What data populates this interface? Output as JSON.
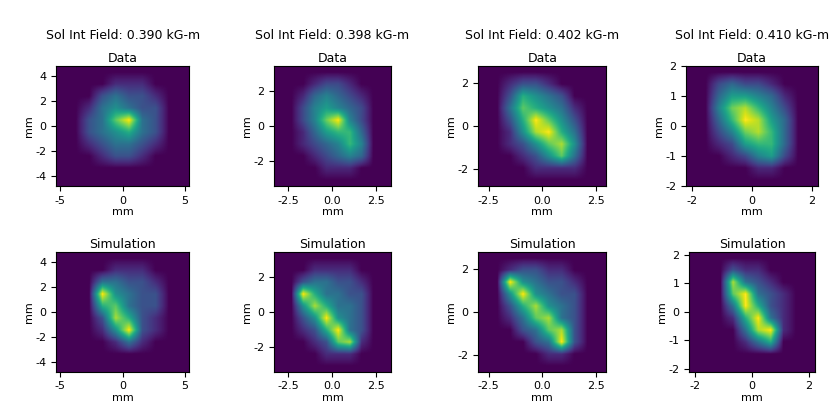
{
  "chart_data": [
    {
      "type": "heatmap",
      "subtitle": "Sol Int Field: 0.390 kG-m",
      "title": "Data",
      "xlabel": "mm",
      "ylabel": "mm",
      "color": "viridis",
      "xlim": [
        -5.3,
        5.3
      ],
      "ylim": [
        -4.8,
        4.8
      ],
      "xticks": [
        -5,
        0,
        5
      ],
      "yticks": [
        -4,
        -2,
        0,
        2,
        4
      ],
      "cells": [
        [
          0,
          0,
          0,
          0,
          0,
          0,
          0,
          0,
          0,
          0
        ],
        [
          0,
          0,
          0,
          0,
          1,
          1,
          1,
          0,
          0,
          0
        ],
        [
          0,
          0,
          0,
          2,
          3,
          2,
          2,
          1,
          0,
          0
        ],
        [
          0,
          0,
          1,
          3,
          4,
          3,
          2,
          2,
          0,
          0
        ],
        [
          0,
          0,
          2,
          3,
          6,
          8,
          3,
          2,
          0,
          0
        ],
        [
          0,
          0,
          2,
          3,
          4,
          5,
          3,
          2,
          0,
          0
        ],
        [
          0,
          0,
          1,
          2,
          3,
          3,
          2,
          1,
          0,
          0
        ],
        [
          0,
          0,
          0,
          1,
          2,
          2,
          1,
          0,
          0,
          0
        ],
        [
          0,
          0,
          0,
          0,
          0,
          0,
          0,
          0,
          0,
          0
        ],
        [
          0,
          0,
          0,
          0,
          0,
          0,
          0,
          0,
          0,
          0
        ]
      ]
    },
    {
      "type": "heatmap",
      "subtitle": "Sol Int Field: 0.398 kG-m",
      "title": "Data",
      "xlabel": "mm",
      "ylabel": "mm",
      "color": "viridis",
      "xlim": [
        -3.3,
        3.3
      ],
      "ylim": [
        -3.4,
        3.4
      ],
      "xticks": [
        -2.5,
        {
          "value": 0,
          "label": "0.0"
        },
        2.5
      ],
      "yticks": [
        -2,
        0,
        2
      ],
      "cells": [
        [
          0,
          0,
          0,
          0,
          0,
          0,
          0,
          0,
          0,
          0
        ],
        [
          0,
          0,
          0,
          1,
          2,
          2,
          1,
          0,
          0,
          0
        ],
        [
          0,
          0,
          1,
          3,
          4,
          3,
          2,
          1,
          0,
          0
        ],
        [
          0,
          0,
          2,
          4,
          5,
          4,
          3,
          2,
          0,
          0
        ],
        [
          0,
          0,
          2,
          4,
          7,
          9,
          4,
          2,
          0,
          0
        ],
        [
          0,
          0,
          1,
          3,
          5,
          6,
          6,
          3,
          0,
          0
        ],
        [
          0,
          0,
          1,
          2,
          3,
          4,
          6,
          4,
          0,
          0
        ],
        [
          0,
          0,
          0,
          1,
          2,
          3,
          4,
          3,
          0,
          0
        ],
        [
          0,
          0,
          0,
          0,
          1,
          1,
          1,
          0,
          0,
          0
        ],
        [
          0,
          0,
          0,
          0,
          0,
          0,
          0,
          0,
          0,
          0
        ]
      ]
    },
    {
      "type": "heatmap",
      "subtitle": "Sol Int Field: 0.402 kG-m",
      "title": "Data",
      "xlabel": "mm",
      "ylabel": "mm",
      "color": "viridis",
      "xlim": [
        -3,
        3
      ],
      "ylim": [
        -2.8,
        2.8
      ],
      "xticks": [
        -2.5,
        {
          "value": 0,
          "label": "0.0"
        },
        2.5
      ],
      "yticks": [
        -2,
        0,
        2
      ],
      "cells": [
        [
          0,
          0,
          0,
          0,
          0,
          0,
          0,
          0,
          0,
          0
        ],
        [
          0,
          0,
          1,
          2,
          2,
          1,
          0,
          0,
          0,
          0
        ],
        [
          0,
          0,
          2,
          5,
          4,
          3,
          2,
          0,
          0,
          0
        ],
        [
          0,
          0,
          3,
          6,
          5,
          4,
          3,
          1,
          0,
          0
        ],
        [
          0,
          0,
          2,
          5,
          8,
          6,
          4,
          2,
          0,
          0
        ],
        [
          0,
          0,
          1,
          4,
          7,
          8,
          5,
          3,
          0,
          0
        ],
        [
          0,
          0,
          1,
          2,
          4,
          6,
          7,
          4,
          0,
          0
        ],
        [
          0,
          0,
          0,
          1,
          2,
          4,
          6,
          3,
          0,
          0
        ],
        [
          0,
          0,
          0,
          0,
          1,
          1,
          1,
          1,
          0,
          0
        ],
        [
          0,
          0,
          0,
          0,
          0,
          0,
          0,
          0,
          0,
          0
        ]
      ]
    },
    {
      "type": "heatmap",
      "subtitle": "Sol Int Field: 0.410 kG-m",
      "title": "Data",
      "xlabel": "mm",
      "ylabel": "mm",
      "color": "viridis",
      "xlim": [
        -2.2,
        2.2
      ],
      "ylim": [
        -2,
        2
      ],
      "xticks": [
        -2,
        0,
        2
      ],
      "yticks": [
        -2,
        -1,
        0,
        1,
        2
      ],
      "cells": [
        [
          0,
          0,
          0,
          0,
          0,
          0,
          0,
          0,
          0,
          0
        ],
        [
          0,
          0,
          2,
          3,
          2,
          2,
          1,
          0,
          0,
          0
        ],
        [
          0,
          0,
          3,
          5,
          5,
          4,
          3,
          1,
          0,
          0
        ],
        [
          0,
          0,
          4,
          7,
          8,
          6,
          4,
          2,
          0,
          0
        ],
        [
          0,
          0,
          3,
          6,
          9,
          8,
          5,
          3,
          0,
          0
        ],
        [
          0,
          0,
          2,
          4,
          7,
          8,
          6,
          3,
          0,
          0
        ],
        [
          0,
          0,
          1,
          2,
          5,
          6,
          6,
          3,
          0,
          0
        ],
        [
          0,
          0,
          0,
          1,
          2,
          4,
          5,
          2,
          0,
          0
        ],
        [
          0,
          0,
          0,
          0,
          0,
          1,
          1,
          0,
          0,
          0
        ],
        [
          0,
          0,
          0,
          0,
          0,
          0,
          0,
          0,
          0,
          0
        ]
      ]
    },
    {
      "type": "heatmap",
      "title": "Simulation",
      "xlabel": "mm",
      "ylabel": "mm",
      "color": "viridis",
      "xlim": [
        -5.3,
        5.3
      ],
      "ylim": [
        -4.8,
        4.8
      ],
      "xticks": [
        -5,
        0,
        5
      ],
      "yticks": [
        -4,
        -2,
        0,
        2,
        4
      ],
      "cells": [
        [
          0,
          0,
          0,
          0,
          0,
          0,
          0,
          0,
          0,
          0
        ],
        [
          0,
          0,
          0,
          0,
          1,
          1,
          1,
          0,
          0,
          0
        ],
        [
          0,
          0,
          0,
          3,
          3,
          2,
          2,
          1,
          0,
          0
        ],
        [
          0,
          0,
          0,
          8,
          4,
          3,
          2,
          2,
          0,
          0
        ],
        [
          0,
          0,
          0,
          5,
          6,
          3,
          2,
          2,
          0,
          0
        ],
        [
          0,
          0,
          0,
          2,
          7,
          5,
          2,
          1,
          0,
          0
        ],
        [
          0,
          0,
          0,
          1,
          4,
          8,
          2,
          1,
          0,
          0
        ],
        [
          0,
          0,
          0,
          0,
          1,
          3,
          1,
          0,
          0,
          0
        ],
        [
          0,
          0,
          0,
          0,
          0,
          0,
          0,
          0,
          0,
          0
        ],
        [
          0,
          0,
          0,
          0,
          0,
          0,
          0,
          0,
          0,
          0
        ]
      ]
    },
    {
      "type": "heatmap",
      "title": "Simulation",
      "xlabel": "mm",
      "ylabel": "mm",
      "color": "viridis",
      "xlim": [
        -3.3,
        3.3
      ],
      "ylim": [
        -3.4,
        3.4
      ],
      "xticks": [
        -2.5,
        {
          "value": 0,
          "label": "0.0"
        },
        2.5
      ],
      "yticks": [
        -2,
        0,
        2
      ],
      "cells": [
        [
          0,
          0,
          0,
          0,
          0,
          0,
          0,
          0,
          0,
          0
        ],
        [
          0,
          0,
          0,
          1,
          1,
          1,
          1,
          0,
          0,
          0
        ],
        [
          0,
          0,
          2,
          3,
          3,
          2,
          2,
          1,
          0,
          0
        ],
        [
          0,
          0,
          8,
          5,
          3,
          3,
          2,
          2,
          0,
          0
        ],
        [
          0,
          0,
          4,
          7,
          5,
          3,
          3,
          2,
          0,
          0
        ],
        [
          0,
          0,
          2,
          4,
          8,
          4,
          3,
          2,
          0,
          0
        ],
        [
          0,
          0,
          1,
          2,
          5,
          8,
          3,
          2,
          0,
          0
        ],
        [
          0,
          0,
          0,
          1,
          2,
          6,
          7,
          1,
          0,
          0
        ],
        [
          0,
          0,
          0,
          0,
          1,
          1,
          1,
          0,
          0,
          0
        ],
        [
          0,
          0,
          0,
          0,
          0,
          0,
          0,
          0,
          0,
          0
        ]
      ]
    },
    {
      "type": "heatmap",
      "title": "Simulation",
      "xlabel": "mm",
      "ylabel": "mm",
      "color": "viridis",
      "xlim": [
        -3,
        3
      ],
      "ylim": [
        -2.8,
        2.8
      ],
      "xticks": [
        -2.5,
        {
          "value": 0,
          "label": "0.0"
        },
        2.5
      ],
      "yticks": [
        -2,
        0,
        2
      ],
      "cells": [
        [
          0,
          0,
          0,
          0,
          0,
          0,
          0,
          0,
          0,
          0
        ],
        [
          0,
          0,
          1,
          2,
          2,
          1,
          1,
          0,
          0,
          0
        ],
        [
          0,
          0,
          8,
          4,
          3,
          2,
          2,
          1,
          0,
          0
        ],
        [
          0,
          0,
          4,
          8,
          4,
          3,
          2,
          2,
          0,
          0
        ],
        [
          0,
          0,
          2,
          5,
          7,
          4,
          3,
          2,
          0,
          0
        ],
        [
          0,
          0,
          1,
          3,
          6,
          7,
          3,
          2,
          0,
          0
        ],
        [
          0,
          0,
          0,
          2,
          3,
          6,
          7,
          2,
          0,
          0
        ],
        [
          0,
          0,
          0,
          0,
          2,
          3,
          8,
          2,
          0,
          0
        ],
        [
          0,
          0,
          0,
          0,
          0,
          1,
          1,
          0,
          0,
          0
        ],
        [
          0,
          0,
          0,
          0,
          0,
          0,
          0,
          0,
          0,
          0
        ]
      ]
    },
    {
      "type": "heatmap",
      "title": "Simulation",
      "xlabel": "mm",
      "ylabel": "mm",
      "color": "viridis",
      "xlim": [
        -2.2,
        2.2
      ],
      "ylim": [
        -2.1,
        2.1
      ],
      "xticks": [
        -2,
        0,
        2
      ],
      "yticks": [
        -2,
        -1,
        0,
        1,
        2
      ],
      "cells": [
        [
          0,
          0,
          0,
          0,
          0,
          0,
          0,
          0,
          0,
          0
        ],
        [
          0,
          0,
          0,
          2,
          1,
          1,
          0,
          0,
          0,
          0
        ],
        [
          0,
          0,
          0,
          7,
          3,
          2,
          1,
          0,
          0,
          0
        ],
        [
          0,
          0,
          0,
          6,
          8,
          3,
          2,
          1,
          0,
          0
        ],
        [
          0,
          0,
          0,
          3,
          8,
          5,
          2,
          1,
          0,
          0
        ],
        [
          0,
          0,
          0,
          1,
          5,
          8,
          3,
          1,
          0,
          0
        ],
        [
          0,
          0,
          0,
          0,
          3,
          7,
          8,
          1,
          0,
          0
        ],
        [
          0,
          0,
          0,
          0,
          1,
          3,
          5,
          0,
          0,
          0
        ],
        [
          0,
          0,
          0,
          0,
          0,
          0,
          0,
          0,
          0,
          0
        ],
        [
          0,
          0,
          0,
          0,
          0,
          0,
          0,
          0,
          0,
          0
        ]
      ]
    }
  ]
}
